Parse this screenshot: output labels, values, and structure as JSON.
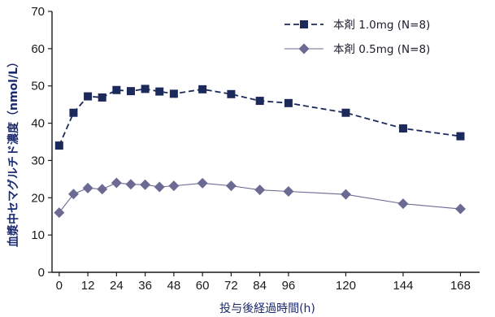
{
  "chart_data": {
    "type": "line",
    "xlabel": "投与後経過時間(h)",
    "ylabel": "血漿中セマグルチド濃度（nmol/L）",
    "x_ticks": [
      0,
      12,
      24,
      36,
      48,
      60,
      72,
      84,
      96,
      120,
      144,
      168
    ],
    "y_ticks": [
      0,
      10,
      20,
      30,
      40,
      50,
      60,
      70
    ],
    "xlim": [
      -3,
      176
    ],
    "ylim": [
      0,
      70
    ],
    "grid": false,
    "legend_position": "top-right",
    "series": [
      {
        "name": "本剤 1.0mg (N=8)",
        "color": "#1b2a5a",
        "marker": "square",
        "line_style": "dashed",
        "x": [
          0,
          6,
          12,
          18,
          24,
          30,
          36,
          42,
          48,
          60,
          72,
          84,
          96,
          120,
          144,
          168
        ],
        "y": [
          34,
          42.8,
          47.2,
          46.9,
          48.9,
          48.6,
          49.2,
          48.5,
          47.9,
          49.1,
          47.8,
          46.0,
          45.4,
          42.8,
          38.6,
          36.5
        ]
      },
      {
        "name": "本剤 0.5mg (N=8)",
        "color": "#6b6a93",
        "marker": "diamond",
        "line_style": "solid",
        "x": [
          0,
          6,
          12,
          18,
          24,
          30,
          36,
          42,
          48,
          60,
          72,
          84,
          96,
          120,
          144,
          168
        ],
        "y": [
          16,
          21.0,
          22.6,
          22.3,
          24.0,
          23.6,
          23.5,
          22.9,
          23.2,
          23.9,
          23.2,
          22.1,
          21.7,
          20.9,
          18.4,
          17.0
        ]
      }
    ]
  }
}
